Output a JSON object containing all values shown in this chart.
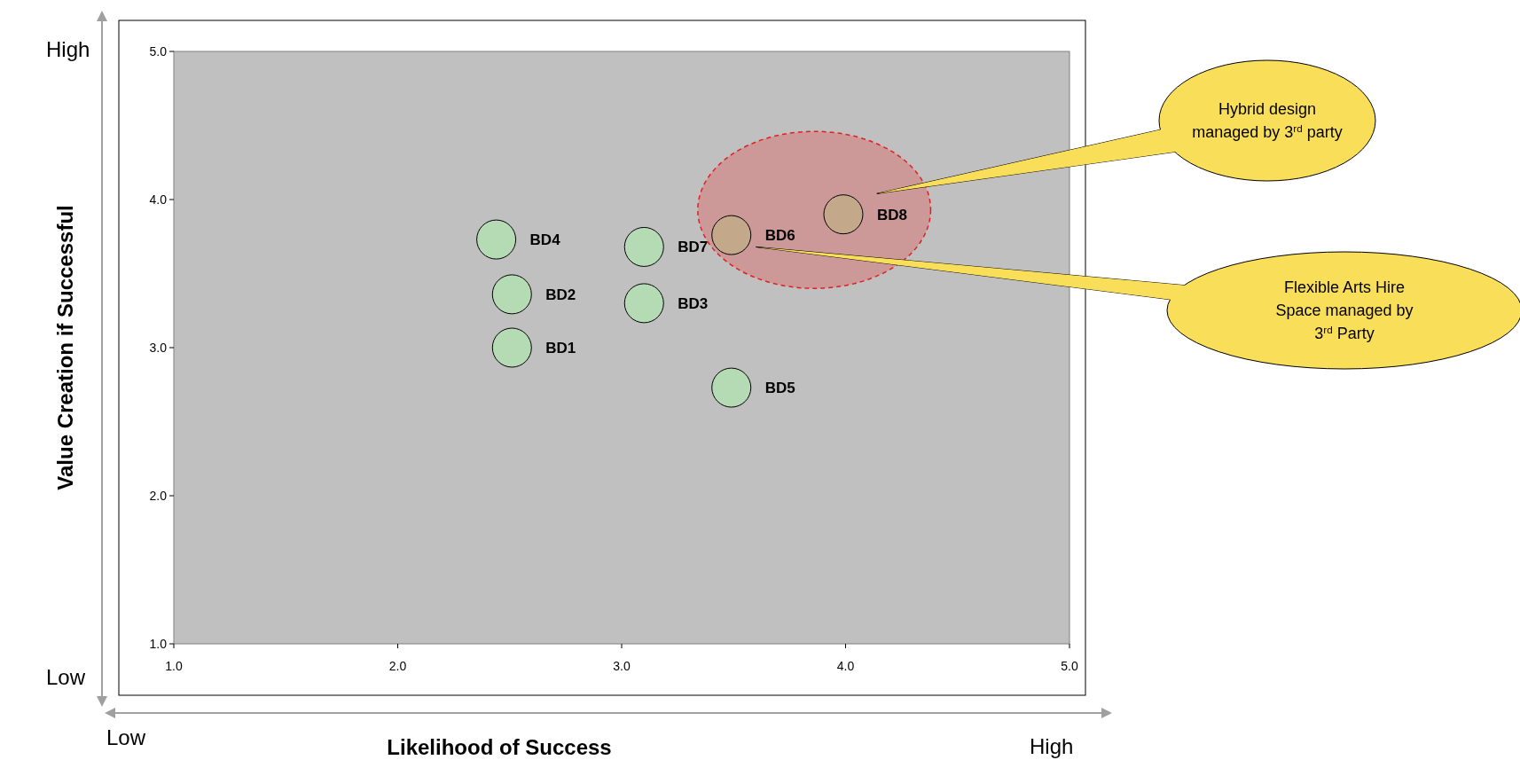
{
  "chart_data": {
    "type": "scatter",
    "xlabel": "Likelihood of Success",
    "ylabel": "Value Creation if Successful",
    "xlim": [
      1,
      5
    ],
    "ylim": [
      1,
      5
    ],
    "xticks": [
      {
        "value": 1,
        "label": "1.0"
      },
      {
        "value": 2,
        "label": "2.0"
      },
      {
        "value": 3,
        "label": "3.0"
      },
      {
        "value": 4,
        "label": "4.0"
      },
      {
        "value": 5,
        "label": "5.0"
      }
    ],
    "yticks": [
      {
        "value": 1,
        "label": "1.0"
      },
      {
        "value": 2,
        "label": "2.0"
      },
      {
        "value": 3,
        "label": "3.0"
      },
      {
        "value": 4,
        "label": "4.0"
      },
      {
        "value": 5,
        "label": "5.0"
      }
    ],
    "grid": false,
    "marker": "circle",
    "series": [
      {
        "name": "BD1",
        "color": "#b5dbb5",
        "x": [
          2.51
        ],
        "values": [
          3.0
        ]
      },
      {
        "name": "BD2",
        "color": "#b5dbb5",
        "x": [
          2.51
        ],
        "values": [
          3.36
        ]
      },
      {
        "name": "BD3",
        "color": "#b5dbb5",
        "x": [
          3.1
        ],
        "values": [
          3.3
        ]
      },
      {
        "name": "BD4",
        "color": "#b5dbb5",
        "x": [
          2.44
        ],
        "values": [
          3.73
        ]
      },
      {
        "name": "BD5",
        "color": "#b5dbb5",
        "x": [
          3.49
        ],
        "values": [
          2.73
        ]
      },
      {
        "name": "BD6",
        "color": "#c4a88a",
        "x": [
          3.49
        ],
        "values": [
          3.76
        ]
      },
      {
        "name": "BD7",
        "color": "#b5dbb5",
        "x": [
          3.1
        ],
        "values": [
          3.68
        ]
      },
      {
        "name": "BD8",
        "color": "#c4a88a",
        "x": [
          3.99
        ],
        "values": [
          3.9
        ]
      }
    ],
    "annotations": [
      "Hybrid design\nmanaged by 3$^{rd}$ party",
      "Flexible Arts Hire\nSpace managed by\n3$^{rd}$ Party",
      "High",
      "Low",
      "Low",
      "High"
    ]
  }
}
